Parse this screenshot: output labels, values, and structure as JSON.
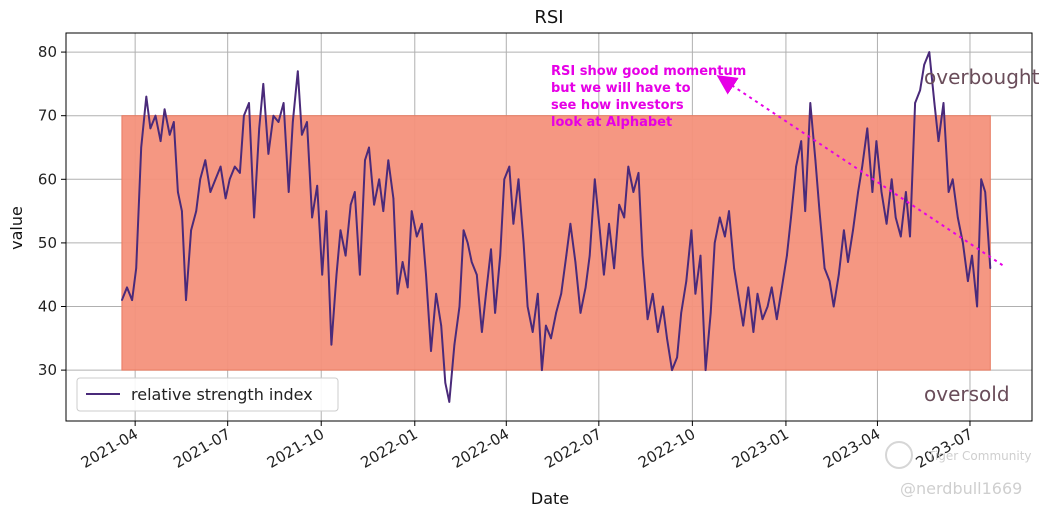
{
  "chart_data": {
    "type": "line",
    "title": "RSI",
    "xlabel": "Date",
    "ylabel": "value",
    "xlim": [
      "2021-01-23",
      "2023-08-31"
    ],
    "ylim": [
      22,
      83
    ],
    "yticks": [
      30,
      40,
      50,
      60,
      70,
      80
    ],
    "xticks": [
      "2021-04",
      "2021-07",
      "2021-10",
      "2022-01",
      "2022-04",
      "2022-07",
      "2022-10",
      "2023-01",
      "2023-04",
      "2023-07"
    ],
    "grid": true,
    "legend_position": "lower-left",
    "band": {
      "from_date": "2021-03-19",
      "to_date": "2023-07-21",
      "low": 30,
      "high": 70,
      "color": "#f4917b"
    },
    "series": [
      {
        "name": "relative strength index",
        "color": "#4a2a7a",
        "points": [
          [
            "2021-03-19",
            41
          ],
          [
            "2021-03-24",
            43
          ],
          [
            "2021-03-29",
            41
          ],
          [
            "2021-04-02",
            46
          ],
          [
            "2021-04-07",
            65
          ],
          [
            "2021-04-12",
            73
          ],
          [
            "2021-04-16",
            68
          ],
          [
            "2021-04-21",
            70
          ],
          [
            "2021-04-26",
            66
          ],
          [
            "2021-04-30",
            71
          ],
          [
            "2021-05-05",
            67
          ],
          [
            "2021-05-09",
            69
          ],
          [
            "2021-05-13",
            58
          ],
          [
            "2021-05-17",
            55
          ],
          [
            "2021-05-21",
            41
          ],
          [
            "2021-05-26",
            52
          ],
          [
            "2021-05-31",
            55
          ],
          [
            "2021-06-04",
            60
          ],
          [
            "2021-06-09",
            63
          ],
          [
            "2021-06-14",
            58
          ],
          [
            "2021-06-19",
            60
          ],
          [
            "2021-06-24",
            62
          ],
          [
            "2021-06-29",
            57
          ],
          [
            "2021-07-03",
            60
          ],
          [
            "2021-07-08",
            62
          ],
          [
            "2021-07-13",
            61
          ],
          [
            "2021-07-17",
            70
          ],
          [
            "2021-07-22",
            72
          ],
          [
            "2021-07-27",
            54
          ],
          [
            "2021-08-01",
            68
          ],
          [
            "2021-08-05",
            75
          ],
          [
            "2021-08-10",
            64
          ],
          [
            "2021-08-15",
            70
          ],
          [
            "2021-08-20",
            69
          ],
          [
            "2021-08-25",
            72
          ],
          [
            "2021-08-30",
            58
          ],
          [
            "2021-09-03",
            69
          ],
          [
            "2021-09-08",
            77
          ],
          [
            "2021-09-12",
            67
          ],
          [
            "2021-09-17",
            69
          ],
          [
            "2021-09-22",
            54
          ],
          [
            "2021-09-27",
            59
          ],
          [
            "2021-10-02",
            45
          ],
          [
            "2021-10-06",
            55
          ],
          [
            "2021-10-11",
            34
          ],
          [
            "2021-10-16",
            45
          ],
          [
            "2021-10-20",
            52
          ],
          [
            "2021-10-25",
            48
          ],
          [
            "2021-10-30",
            56
          ],
          [
            "2021-11-03",
            58
          ],
          [
            "2021-11-08",
            45
          ],
          [
            "2021-11-13",
            63
          ],
          [
            "2021-11-17",
            65
          ],
          [
            "2021-11-22",
            56
          ],
          [
            "2021-11-27",
            60
          ],
          [
            "2021-12-01",
            55
          ],
          [
            "2021-12-06",
            63
          ],
          [
            "2021-12-11",
            57
          ],
          [
            "2021-12-15",
            42
          ],
          [
            "2021-12-20",
            47
          ],
          [
            "2021-12-25",
            43
          ],
          [
            "2021-12-29",
            55
          ],
          [
            "2022-01-03",
            51
          ],
          [
            "2022-01-08",
            53
          ],
          [
            "2022-01-12",
            45
          ],
          [
            "2022-01-17",
            33
          ],
          [
            "2022-01-22",
            42
          ],
          [
            "2022-01-27",
            37
          ],
          [
            "2022-01-31",
            28
          ],
          [
            "2022-02-04",
            25
          ],
          [
            "2022-02-09",
            34
          ],
          [
            "2022-02-14",
            40
          ],
          [
            "2022-02-18",
            52
          ],
          [
            "2022-02-22",
            50
          ],
          [
            "2022-02-26",
            47
          ],
          [
            "2022-03-03",
            45
          ],
          [
            "2022-03-08",
            36
          ],
          [
            "2022-03-12",
            42
          ],
          [
            "2022-03-17",
            49
          ],
          [
            "2022-03-21",
            39
          ],
          [
            "2022-03-26",
            48
          ],
          [
            "2022-03-30",
            60
          ],
          [
            "2022-04-04",
            62
          ],
          [
            "2022-04-08",
            53
          ],
          [
            "2022-04-13",
            60
          ],
          [
            "2022-04-18",
            50
          ],
          [
            "2022-04-22",
            40
          ],
          [
            "2022-04-27",
            36
          ],
          [
            "2022-05-02",
            42
          ],
          [
            "2022-05-06",
            30
          ],
          [
            "2022-05-10",
            37
          ],
          [
            "2022-05-15",
            35
          ],
          [
            "2022-05-20",
            39
          ],
          [
            "2022-05-25",
            42
          ],
          [
            "2022-05-30",
            48
          ],
          [
            "2022-06-03",
            53
          ],
          [
            "2022-06-08",
            47
          ],
          [
            "2022-06-13",
            39
          ],
          [
            "2022-06-18",
            43
          ],
          [
            "2022-06-22",
            48
          ],
          [
            "2022-06-27",
            60
          ],
          [
            "2022-07-02",
            52
          ],
          [
            "2022-07-06",
            45
          ],
          [
            "2022-07-11",
            53
          ],
          [
            "2022-07-16",
            46
          ],
          [
            "2022-07-21",
            56
          ],
          [
            "2022-07-26",
            54
          ],
          [
            "2022-07-30",
            62
          ],
          [
            "2022-08-04",
            58
          ],
          [
            "2022-08-09",
            61
          ],
          [
            "2022-08-13",
            48
          ],
          [
            "2022-08-18",
            38
          ],
          [
            "2022-08-23",
            42
          ],
          [
            "2022-08-28",
            36
          ],
          [
            "2022-09-02",
            40
          ],
          [
            "2022-09-06",
            35
          ],
          [
            "2022-09-11",
            30
          ],
          [
            "2022-09-16",
            32
          ],
          [
            "2022-09-20",
            39
          ],
          [
            "2022-09-25",
            44
          ],
          [
            "2022-09-30",
            52
          ],
          [
            "2022-10-04",
            42
          ],
          [
            "2022-10-09",
            48
          ],
          [
            "2022-10-14",
            30
          ],
          [
            "2022-10-19",
            39
          ],
          [
            "2022-10-23",
            50
          ],
          [
            "2022-10-28",
            54
          ],
          [
            "2022-11-02",
            51
          ],
          [
            "2022-11-06",
            55
          ],
          [
            "2022-11-11",
            46
          ],
          [
            "2022-11-16",
            41
          ],
          [
            "2022-11-20",
            37
          ],
          [
            "2022-11-25",
            43
          ],
          [
            "2022-11-30",
            36
          ],
          [
            "2022-12-04",
            42
          ],
          [
            "2022-12-09",
            38
          ],
          [
            "2022-12-14",
            40
          ],
          [
            "2022-12-18",
            43
          ],
          [
            "2022-12-23",
            38
          ],
          [
            "2022-12-28",
            43
          ],
          [
            "2023-01-02",
            48
          ],
          [
            "2023-01-06",
            54
          ],
          [
            "2023-01-11",
            62
          ],
          [
            "2023-01-16",
            66
          ],
          [
            "2023-01-20",
            55
          ],
          [
            "2023-01-25",
            72
          ],
          [
            "2023-01-30",
            63
          ],
          [
            "2023-02-03",
            55
          ],
          [
            "2023-02-08",
            46
          ],
          [
            "2023-02-13",
            44
          ],
          [
            "2023-02-17",
            40
          ],
          [
            "2023-02-22",
            45
          ],
          [
            "2023-02-27",
            52
          ],
          [
            "2023-03-03",
            47
          ],
          [
            "2023-03-08",
            52
          ],
          [
            "2023-03-13",
            58
          ],
          [
            "2023-03-17",
            62
          ],
          [
            "2023-03-22",
            68
          ],
          [
            "2023-03-27",
            58
          ],
          [
            "2023-03-31",
            66
          ],
          [
            "2023-04-05",
            58
          ],
          [
            "2023-04-10",
            53
          ],
          [
            "2023-04-15",
            60
          ],
          [
            "2023-04-19",
            54
          ],
          [
            "2023-04-24",
            51
          ],
          [
            "2023-04-29",
            58
          ],
          [
            "2023-05-03",
            51
          ],
          [
            "2023-05-08",
            72
          ],
          [
            "2023-05-13",
            74
          ],
          [
            "2023-05-17",
            78
          ],
          [
            "2023-05-22",
            80
          ],
          [
            "2023-05-27",
            72
          ],
          [
            "2023-05-31",
            66
          ],
          [
            "2023-06-05",
            72
          ],
          [
            "2023-06-10",
            58
          ],
          [
            "2023-06-14",
            60
          ],
          [
            "2023-06-19",
            54
          ],
          [
            "2023-06-24",
            50
          ],
          [
            "2023-06-29",
            44
          ],
          [
            "2023-07-03",
            48
          ],
          [
            "2023-07-08",
            40
          ],
          [
            "2023-07-12",
            60
          ],
          [
            "2023-07-16",
            58
          ],
          [
            "2023-07-21",
            46
          ]
        ]
      }
    ],
    "zone_labels": {
      "upper": "overbought",
      "lower": "oversold"
    },
    "annotation": {
      "lines": [
        "RSI show good momentum",
        "but we will have to",
        "see how investors",
        "look at Alphabet"
      ],
      "color": "#e600e6",
      "arrow_from": [
        "2023-08-02",
        46.5
      ],
      "arrow_to": [
        "2022-11-02",
        75.5
      ]
    }
  },
  "watermark": {
    "community": "Tiger Community",
    "handle": "@nerdbull1669"
  }
}
